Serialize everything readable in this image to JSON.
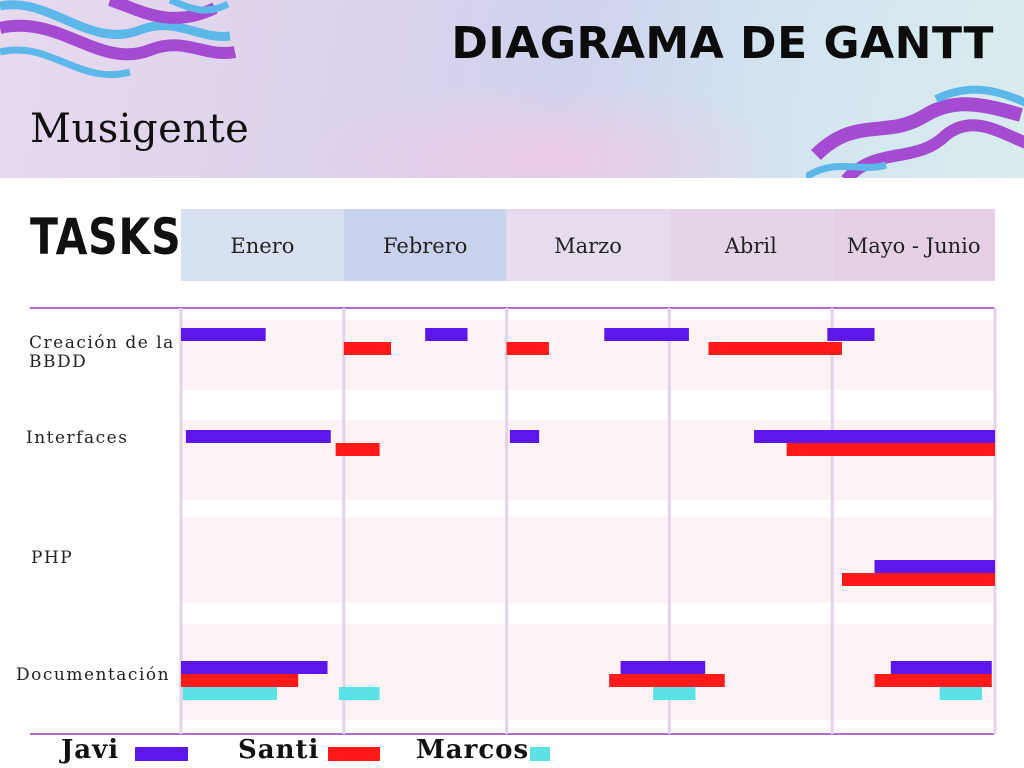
{
  "brand": "Musigente",
  "title": "DIAGRAMA DE GANTT",
  "tasks_heading": "TASKS",
  "colors": {
    "Javi": "#5e17eb",
    "Santi": "#ff1a1a",
    "Marcos": "#5ce1e6"
  },
  "chart_data": {
    "type": "gantt",
    "x_unit": "month",
    "xlim": [
      0,
      5
    ],
    "categories": [
      "Enero",
      "Febrero",
      "Marzo",
      "Abril",
      "Mayo - Junio"
    ],
    "tasks": [
      "Creación de la BBDD",
      "Interfaces",
      "PHP",
      "Documentación"
    ],
    "legend": [
      "Javi",
      "Santi",
      "Marcos"
    ],
    "series": [
      {
        "name": "Javi",
        "bars": [
          {
            "task": "Creación de la BBDD",
            "start": 0.0,
            "end": 0.52
          },
          {
            "task": "Creación de la BBDD",
            "start": 1.5,
            "end": 1.76
          },
          {
            "task": "Creación de la BBDD",
            "start": 2.6,
            "end": 3.12
          },
          {
            "task": "Creación de la BBDD",
            "start": 3.97,
            "end": 4.26
          },
          {
            "task": "Interfaces",
            "start": 0.03,
            "end": 0.92
          },
          {
            "task": "Interfaces",
            "start": 2.02,
            "end": 2.2
          },
          {
            "task": "Interfaces",
            "start": 3.52,
            "end": 5.0
          },
          {
            "task": "PHP",
            "start": 4.26,
            "end": 5.0
          },
          {
            "task": "Documentación",
            "start": 0.0,
            "end": 0.9
          },
          {
            "task": "Documentación",
            "start": 2.7,
            "end": 3.22
          },
          {
            "task": "Documentación",
            "start": 4.36,
            "end": 4.98
          }
        ]
      },
      {
        "name": "Santi",
        "bars": [
          {
            "task": "Creación de la BBDD",
            "start": 1.0,
            "end": 1.29
          },
          {
            "task": "Creación de la BBDD",
            "start": 2.0,
            "end": 2.26
          },
          {
            "task": "Creación de la BBDD",
            "start": 3.24,
            "end": 4.06
          },
          {
            "task": "Interfaces",
            "start": 0.95,
            "end": 1.22
          },
          {
            "task": "Interfaces",
            "start": 3.72,
            "end": 5.0
          },
          {
            "task": "PHP",
            "start": 4.06,
            "end": 5.0
          },
          {
            "task": "Documentación",
            "start": 0.0,
            "end": 0.72
          },
          {
            "task": "Documentación",
            "start": 2.63,
            "end": 3.34
          },
          {
            "task": "Documentación",
            "start": 4.26,
            "end": 4.98
          }
        ]
      },
      {
        "name": "Marcos",
        "bars": [
          {
            "task": "Documentación",
            "start": 0.01,
            "end": 0.59
          },
          {
            "task": "Documentación",
            "start": 0.97,
            "end": 1.22
          },
          {
            "task": "Documentación",
            "start": 2.9,
            "end": 3.16
          },
          {
            "task": "Documentación",
            "start": 4.66,
            "end": 4.92
          }
        ]
      }
    ]
  }
}
